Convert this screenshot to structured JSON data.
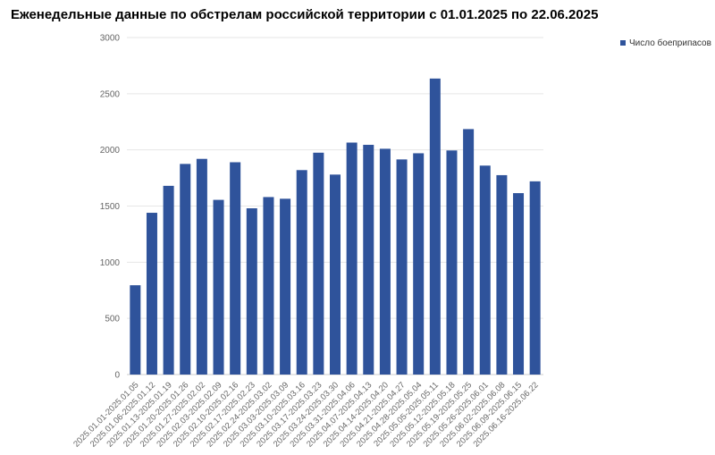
{
  "chart_data": {
    "type": "bar",
    "title": "Еженедельные данные по обстрелам российской территории с 01.01.2025 по 22.06.2025",
    "categories": [
      "2025.01.01-2025.01.05",
      "2025.01.06-2025.01.12",
      "2025.01.13-2025.01.19",
      "2025.01.20-2025.01.26",
      "2025.01.27-2025.02.02",
      "2025.02.03-2025.02.09",
      "2025.02.10-2025.02.16",
      "2025.02.17-2025.02.23",
      "2025.02.24-2025.03.02",
      "2025.03.03-2025.03.09",
      "2025.03.10-2025.03.16",
      "2025.03.17-2025.03.23",
      "2025.03.24-2025.03.30",
      "2025.03.31-2025.04.06",
      "2025.04.07-2025.04.13",
      "2025.04.14-2025.04.20",
      "2025.04.21-2025.04.27",
      "2025.04.28-2025.05.04",
      "2025.05.05-2025.05.11",
      "2025.05.12-2025.05.18",
      "2025.05.19-2025.05.25",
      "2025.05.26-2025.06.01",
      "2025.06.02-2025.06.08",
      "2025.06.09-2025.06.15",
      "2025.06.16-2025.06.22"
    ],
    "series": [
      {
        "name": "Число боеприпасов",
        "color": "#2f539b",
        "values": [
          795,
          1440,
          1680,
          1875,
          1920,
          1555,
          1890,
          1480,
          1580,
          1565,
          1820,
          1975,
          1780,
          2065,
          2045,
          2010,
          1915,
          1970,
          2635,
          1995,
          2185,
          1860,
          1775,
          1615,
          1720
        ]
      }
    ],
    "yticks": [
      0,
      500,
      1000,
      1500,
      2000,
      2500,
      3000
    ],
    "ylim": [
      0,
      3000
    ],
    "xlabel": "",
    "ylabel": "",
    "grid": true,
    "legend_position": "top-right"
  }
}
